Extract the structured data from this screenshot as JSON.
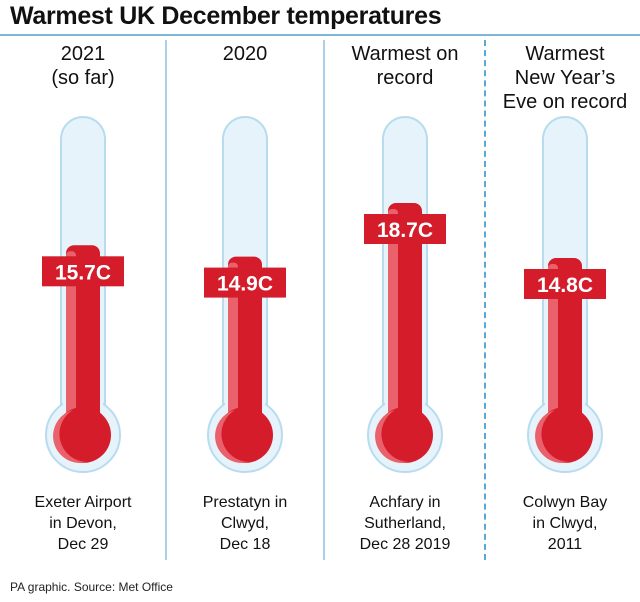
{
  "title": "Warmest UK December temperatures",
  "source": "PA graphic. Source: Met Office",
  "colors": {
    "fill": "#d41c2b",
    "fill_light": "#e8616b",
    "tube": "#e6f3fa",
    "tube_edge": "#b8dcef",
    "divider": "#a9d0e8"
  },
  "chart_data": {
    "type": "bar",
    "title": "Warmest UK December temperatures",
    "unit": "C",
    "categories": [
      "2021 (so far)",
      "2020",
      "Warmest on record",
      "Warmest New Year’s Eve on record"
    ],
    "values": [
      15.7,
      14.9,
      18.7,
      14.8
    ],
    "value_labels": [
      "15.7C",
      "14.9C",
      "18.7C",
      "14.8C"
    ],
    "headings": [
      [
        "2021",
        "(so far)"
      ],
      [
        "2020"
      ],
      [
        "Warmest on",
        "record"
      ],
      [
        "Warmest",
        "New Year’s",
        "Eve on record"
      ]
    ],
    "locations": [
      [
        "Exeter Airport",
        "in Devon,",
        "Dec 29"
      ],
      [
        "Prestatyn in",
        "Clwyd,",
        "Dec 18"
      ],
      [
        "Achfary in",
        "Sutherland,",
        "Dec 28 2019"
      ],
      [
        "Colwyn Bay",
        "in Clwyd,",
        "2011"
      ]
    ]
  }
}
